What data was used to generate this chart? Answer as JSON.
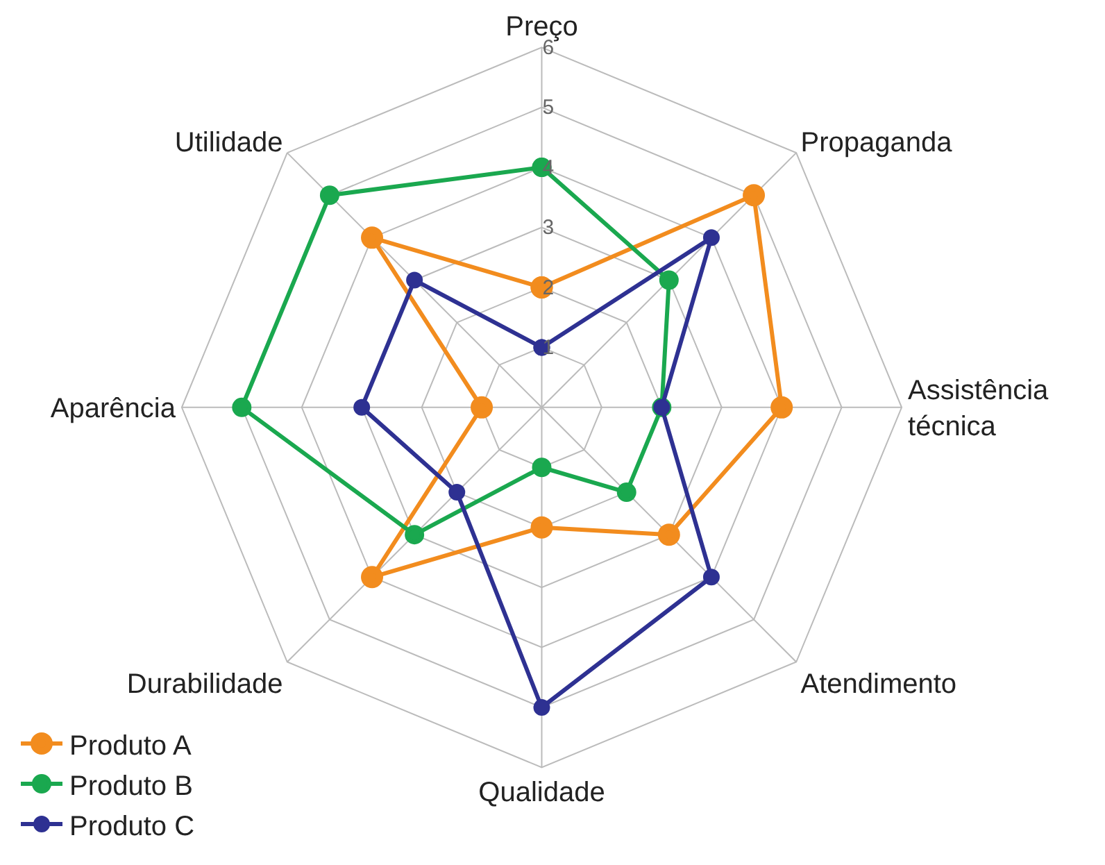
{
  "chart_data": {
    "type": "radar",
    "categories": [
      "Preço",
      "Propaganda",
      "Assistência\ntécnica",
      "Atendimento",
      "Qualidade",
      "Durabilidade",
      "Aparência",
      "Utilidade"
    ],
    "series": [
      {
        "name": "Produto A",
        "color": "#f28c1e",
        "values": [
          2,
          5,
          4,
          3,
          2,
          4,
          1,
          4
        ]
      },
      {
        "name": "Produto B",
        "color": "#1aa84f",
        "values": [
          4,
          3,
          2,
          2,
          1,
          3,
          5,
          5
        ]
      },
      {
        "name": "Produto C",
        "color": "#2e3192",
        "values": [
          1,
          4,
          2,
          4,
          5,
          2,
          3,
          3
        ]
      }
    ],
    "ylim": [
      0,
      6
    ],
    "yticks": [
      1,
      2,
      3,
      4,
      5,
      6
    ],
    "grid": true,
    "legend": "bottom left",
    "marker": "circle",
    "line_style": "solid"
  }
}
